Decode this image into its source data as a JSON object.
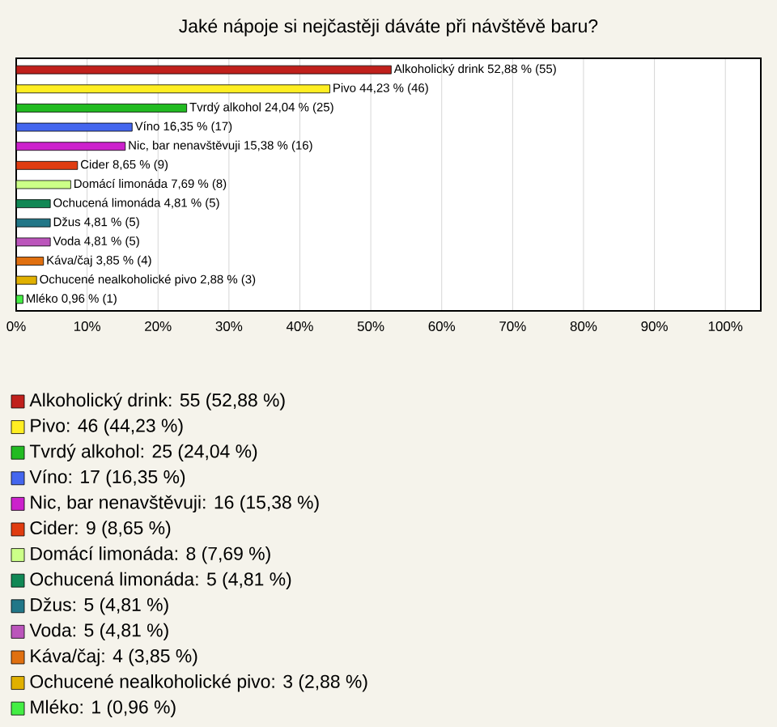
{
  "chart_data": {
    "type": "bar",
    "orientation": "horizontal",
    "title": "Jaké nápoje si nejčastěji dáváte při návštěvě baru?",
    "categories": [
      null,
      null,
      null,
      null,
      null,
      null,
      null,
      null,
      null,
      null,
      null,
      null,
      null
    ],
    "xlim": [
      0,
      105
    ],
    "xticks": [
      {
        "value": 0,
        "label": "0%"
      },
      {
        "value": 10,
        "label": "10%"
      },
      {
        "value": 20,
        "label": "20%"
      },
      {
        "value": 30,
        "label": "30%"
      },
      {
        "value": 40,
        "label": "40%"
      },
      {
        "value": 50,
        "label": "50%"
      },
      {
        "value": 60,
        "label": "60%"
      },
      {
        "value": 70,
        "label": "70%"
      },
      {
        "value": 80,
        "label": "80%"
      },
      {
        "value": 90,
        "label": "90%"
      },
      {
        "value": 100,
        "label": "100%"
      }
    ],
    "grid": "x",
    "legend": "bottom",
    "series": [
      {
        "name": "Alkoholický drink: 55 (52,88 %)",
        "color": "#c0201c",
        "values": [
          52.88,
          null,
          null,
          null,
          null,
          null,
          null,
          null,
          null,
          null,
          null,
          null,
          null
        ],
        "value_labels": [
          "Alkoholický drink 52,88 % (55)",
          null,
          null,
          null,
          null,
          null,
          null,
          null,
          null,
          null,
          null,
          null,
          null
        ]
      },
      {
        "name": "Pivo: 46 (44,23 %)",
        "color": "#ffee22",
        "values": [
          null,
          44.23,
          null,
          null,
          null,
          null,
          null,
          null,
          null,
          null,
          null,
          null,
          null
        ],
        "value_labels": [
          null,
          "Pivo 44,23 % (46)",
          null,
          null,
          null,
          null,
          null,
          null,
          null,
          null,
          null,
          null,
          null
        ]
      },
      {
        "name": "Tvrdý alkohol: 25 (24,04 %)",
        "color": "#22bb22",
        "values": [
          null,
          null,
          24.04,
          null,
          null,
          null,
          null,
          null,
          null,
          null,
          null,
          null,
          null
        ],
        "value_labels": [
          null,
          null,
          "Tvrdý alkohol 24,04 % (25)",
          null,
          null,
          null,
          null,
          null,
          null,
          null,
          null,
          null,
          null
        ]
      },
      {
        "name": "Víno: 17 (16,35 %)",
        "color": "#4466ee",
        "values": [
          null,
          null,
          null,
          16.35,
          null,
          null,
          null,
          null,
          null,
          null,
          null,
          null,
          null
        ],
        "value_labels": [
          null,
          null,
          null,
          "Víno 16,35 % (17)",
          null,
          null,
          null,
          null,
          null,
          null,
          null,
          null,
          null
        ]
      },
      {
        "name": "Nic, bar nenavštěvuji: 16 (15,38 %)",
        "color": "#cc22cc",
        "values": [
          null,
          null,
          null,
          null,
          15.38,
          null,
          null,
          null,
          null,
          null,
          null,
          null,
          null
        ],
        "value_labels": [
          null,
          null,
          null,
          null,
          "Nic, bar nenavštěvuji 15,38 % (16)",
          null,
          null,
          null,
          null,
          null,
          null,
          null,
          null
        ]
      },
      {
        "name": "Cider: 9 (8,65 %)",
        "color": "#e03c10",
        "values": [
          null,
          null,
          null,
          null,
          null,
          8.65,
          null,
          null,
          null,
          null,
          null,
          null,
          null
        ],
        "value_labels": [
          null,
          null,
          null,
          null,
          null,
          "Cider 8,65 % (9)",
          null,
          null,
          null,
          null,
          null,
          null,
          null
        ]
      },
      {
        "name": "Domácí limonáda: 8 (7,69 %)",
        "color": "#ccff88",
        "values": [
          null,
          null,
          null,
          null,
          null,
          null,
          7.69,
          null,
          null,
          null,
          null,
          null,
          null
        ],
        "value_labels": [
          null,
          null,
          null,
          null,
          null,
          null,
          "Domácí limonáda 7,69 % (8)",
          null,
          null,
          null,
          null,
          null,
          null
        ]
      },
      {
        "name": "Ochucená limonáda: 5 (4,81 %)",
        "color": "#118855",
        "values": [
          null,
          null,
          null,
          null,
          null,
          null,
          null,
          4.81,
          null,
          null,
          null,
          null,
          null
        ],
        "value_labels": [
          null,
          null,
          null,
          null,
          null,
          null,
          null,
          "Ochucená limonáda 4,81 % (5)",
          null,
          null,
          null,
          null,
          null
        ]
      },
      {
        "name": "Džus: 5 (4,81 %)",
        "color": "#227788",
        "values": [
          null,
          null,
          null,
          null,
          null,
          null,
          null,
          null,
          4.81,
          null,
          null,
          null,
          null
        ],
        "value_labels": [
          null,
          null,
          null,
          null,
          null,
          null,
          null,
          null,
          "Džus 4,81 % (5)",
          null,
          null,
          null,
          null
        ]
      },
      {
        "name": "Voda: 5 (4,81 %)",
        "color": "#bb55bb",
        "values": [
          null,
          null,
          null,
          null,
          null,
          null,
          null,
          null,
          null,
          4.81,
          null,
          null,
          null
        ],
        "value_labels": [
          null,
          null,
          null,
          null,
          null,
          null,
          null,
          null,
          null,
          "Voda 4,81 % (5)",
          null,
          null,
          null
        ]
      },
      {
        "name": "Káva/čaj: 4 (3,85 %)",
        "color": "#e07010",
        "values": [
          null,
          null,
          null,
          null,
          null,
          null,
          null,
          null,
          null,
          null,
          3.85,
          null,
          null
        ],
        "value_labels": [
          null,
          null,
          null,
          null,
          null,
          null,
          null,
          null,
          null,
          null,
          "Káva/čaj 3,85 % (4)",
          null,
          null
        ]
      },
      {
        "name": "Ochucené nealkoholické pivo: 3 (2,88 %)",
        "color": "#e0b000",
        "values": [
          null,
          null,
          null,
          null,
          null,
          null,
          null,
          null,
          null,
          null,
          null,
          2.88,
          null
        ],
        "value_labels": [
          null,
          null,
          null,
          null,
          null,
          null,
          null,
          null,
          null,
          null,
          null,
          "Ochucené nealkoholické pivo 2,88 % (3)",
          null
        ]
      },
      {
        "name": "Mléko: 1 (0,96 %)",
        "color": "#44ee44",
        "values": [
          null,
          null,
          null,
          null,
          null,
          null,
          null,
          null,
          null,
          null,
          null,
          null,
          0.96
        ],
        "value_labels": [
          null,
          null,
          null,
          null,
          null,
          null,
          null,
          null,
          null,
          null,
          null,
          null,
          "Mléko 0,96 % (1)"
        ]
      }
    ]
  }
}
